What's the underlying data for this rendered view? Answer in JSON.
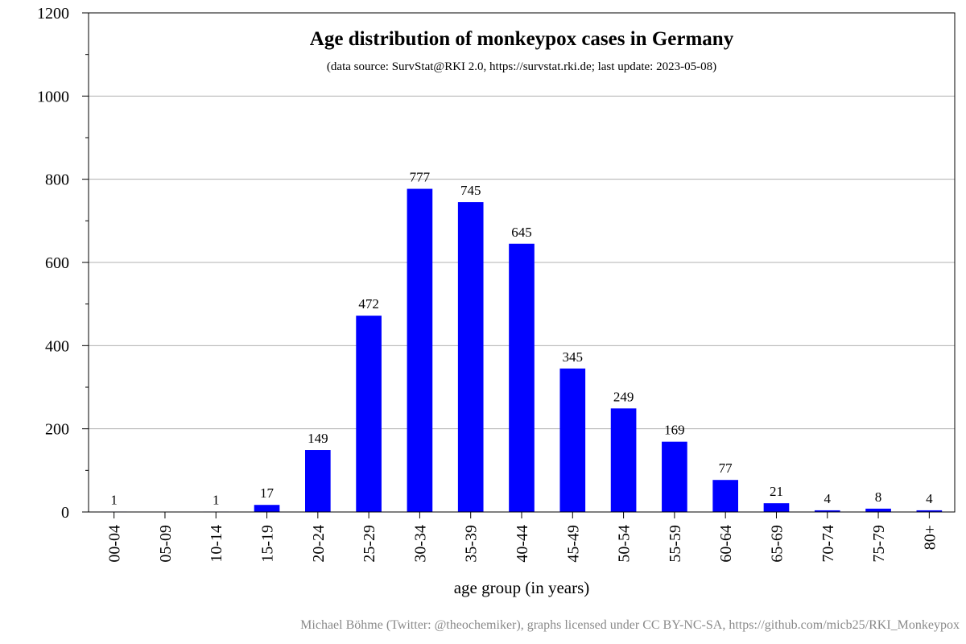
{
  "chart_data": {
    "type": "bar",
    "title": "Age distribution of monkeypox cases in Germany",
    "subtitle": "(data source: SurvStat@RKI 2.0, https://survstat.rki.de; last update: 2023-05-08)",
    "xlabel": "age group (in years)",
    "ylabel": "",
    "categories": [
      "00-04",
      "05-09",
      "10-14",
      "15-19",
      "20-24",
      "25-29",
      "30-34",
      "35-39",
      "40-44",
      "45-49",
      "50-54",
      "55-59",
      "60-64",
      "65-69",
      "70-74",
      "75-79",
      "80+"
    ],
    "values": [
      1,
      0,
      1,
      17,
      149,
      472,
      777,
      745,
      645,
      345,
      249,
      169,
      77,
      21,
      4,
      8,
      4
    ],
    "data_labels": [
      "1",
      "",
      "1",
      "17",
      "149",
      "472",
      "777",
      "745",
      "645",
      "345",
      "249",
      "169",
      "77",
      "21",
      "4",
      "8",
      "4"
    ],
    "ylim": [
      0,
      1200
    ],
    "yticks": [
      0,
      200,
      400,
      600,
      800,
      1000,
      1200
    ],
    "grid": true,
    "bar_color": "#0000ff"
  },
  "credit": "Michael Böhme (Twitter: @theochemiker), graphs licensed under CC BY-NC-SA, https://github.com/micb25/RKI_Monkeypox"
}
